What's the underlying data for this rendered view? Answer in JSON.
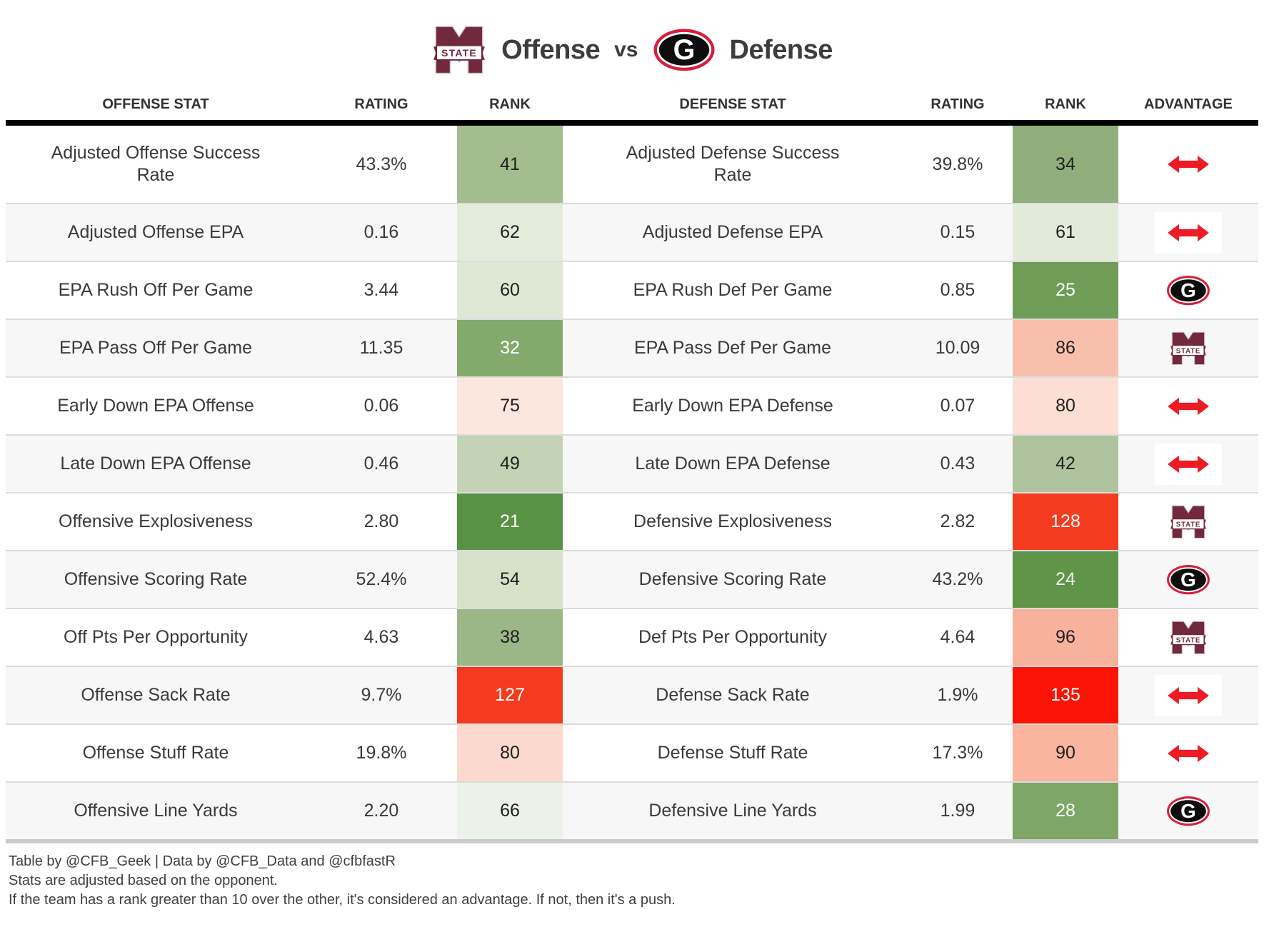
{
  "title": {
    "offense_label": "Offense",
    "vs_label": "vs",
    "defense_label": "Defense",
    "offense_logo": "mississippi-state",
    "defense_logo": "georgia"
  },
  "colors": {
    "msu_maroon": "#72283d",
    "georgia_red": "#d81e3a",
    "arrow_red": "#ed1c24",
    "header_rule": "#000000",
    "row_alt": "#f7f7f7",
    "bottom_rule": "#cbcbcb"
  },
  "chart_data": {
    "type": "table",
    "title": "Offense vs Defense",
    "columns": [
      "OFFENSE STAT",
      "RATING",
      "RANK",
      "DEFENSE STAT",
      "RATING",
      "RANK",
      "ADVANTAGE"
    ],
    "rows": [
      {
        "off_stat": "Adjusted Offense Success Rate",
        "off_rating": "43.3%",
        "off_rank": "41",
        "off_rank_bg": "#a3bd8f",
        "off_rank_fg": "#1f1f1f",
        "def_stat": "Adjusted Defense Success Rate",
        "def_rating": "39.8%",
        "def_rank": "34",
        "def_rank_bg": "#90ae7c",
        "def_rank_fg": "#1f1f1f",
        "advantage": "push"
      },
      {
        "off_stat": "Adjusted Offense EPA",
        "off_rating": "0.16",
        "off_rank": "62",
        "off_rank_bg": "#e3ebdb",
        "off_rank_fg": "#1f1f1f",
        "def_stat": "Adjusted Defense EPA",
        "def_rating": "0.15",
        "def_rank": "61",
        "def_rank_bg": "#e2eada",
        "def_rank_fg": "#1f1f1f",
        "advantage": "push"
      },
      {
        "off_stat": "EPA Rush Off Per Game",
        "off_rating": "3.44",
        "off_rank": "60",
        "off_rank_bg": "#dee8d5",
        "off_rank_fg": "#1f1f1f",
        "def_stat": "EPA Rush Def Per Game",
        "def_rating": "0.85",
        "def_rank": "25",
        "def_rank_bg": "#6f9d58",
        "def_rank_fg": "#ffffff",
        "advantage": "georgia"
      },
      {
        "off_stat": "EPA Pass Off Per Game",
        "off_rating": "11.35",
        "off_rank": "32",
        "off_rank_bg": "#84a96c",
        "off_rank_fg": "#ffffff",
        "def_stat": "EPA Pass Def Per Game",
        "def_rating": "10.09",
        "def_rank": "86",
        "def_rank_bg": "#f9bfad",
        "def_rank_fg": "#1f1f1f",
        "advantage": "mississippi-state"
      },
      {
        "off_stat": "Early Down EPA Offense",
        "off_rating": "0.06",
        "off_rank": "75",
        "off_rank_bg": "#fce7de",
        "off_rank_fg": "#1f1f1f",
        "def_stat": "Early Down EPA Defense",
        "def_rating": "0.07",
        "def_rank": "80",
        "def_rank_bg": "#fcded4",
        "def_rank_fg": "#1f1f1f",
        "advantage": "push"
      },
      {
        "off_stat": "Late Down EPA Offense",
        "off_rating": "0.46",
        "off_rank": "49",
        "off_rank_bg": "#c4d2b5",
        "off_rank_fg": "#1f1f1f",
        "def_stat": "Late Down EPA Defense",
        "def_rating": "0.43",
        "def_rank": "42",
        "def_rank_bg": "#afc49e",
        "def_rank_fg": "#1f1f1f",
        "advantage": "push"
      },
      {
        "off_stat": "Offensive Explosiveness",
        "off_rating": "2.80",
        "off_rank": "21",
        "off_rank_bg": "#5a9245",
        "off_rank_fg": "#ffffff",
        "def_stat": "Defensive Explosiveness",
        "def_rating": "2.82",
        "def_rank": "128",
        "def_rank_bg": "#f53c20",
        "def_rank_fg": "#ffffff",
        "advantage": "mississippi-state"
      },
      {
        "off_stat": "Offensive Scoring Rate",
        "off_rating": "52.4%",
        "off_rank": "54",
        "off_rank_bg": "#d6e1ca",
        "off_rank_fg": "#1f1f1f",
        "def_stat": "Defensive Scoring Rate",
        "def_rating": "43.2%",
        "def_rank": "24",
        "def_rank_bg": "#5f9449",
        "def_rank_fg": "#f5f5e9",
        "advantage": "georgia"
      },
      {
        "off_stat": "Off Pts Per Opportunity",
        "off_rating": "4.63",
        "off_rank": "38",
        "off_rank_bg": "#9cb787",
        "off_rank_fg": "#1f1f1f",
        "def_stat": "Def Pts Per Opportunity",
        "def_rating": "4.64",
        "def_rank": "96",
        "def_rank_bg": "#f8b19d",
        "def_rank_fg": "#1f1f1f",
        "advantage": "mississippi-state"
      },
      {
        "off_stat": "Offense Sack Rate",
        "off_rating": "9.7%",
        "off_rank": "127",
        "off_rank_bg": "#f53a1d",
        "off_rank_fg": "#ffffff",
        "def_stat": "Defense Sack Rate",
        "def_rating": "1.9%",
        "def_rank": "135",
        "def_rank_bg": "#fb1405",
        "def_rank_fg": "#ffffff",
        "advantage": "push"
      },
      {
        "off_stat": "Offense Stuff Rate",
        "off_rating": "19.8%",
        "off_rank": "80",
        "off_rank_bg": "#fbd9cd",
        "off_rank_fg": "#1f1f1f",
        "def_stat": "Defense Stuff Rate",
        "def_rating": "17.3%",
        "def_rank": "90",
        "def_rank_bg": "#f9b59f",
        "def_rank_fg": "#1f1f1f",
        "advantage": "push"
      },
      {
        "off_stat": "Offensive Line Yards",
        "off_rating": "2.20",
        "off_rank": "66",
        "off_rank_bg": "#edf2e8",
        "off_rank_fg": "#1f1f1f",
        "def_stat": "Defensive Line Yards",
        "def_rating": "1.99",
        "def_rank": "28",
        "def_rank_bg": "#7da667",
        "def_rank_fg": "#ffffff",
        "advantage": "georgia"
      }
    ]
  },
  "footer": {
    "line1": "Table by @CFB_Geek | Data by @CFB_Data and @cfbfastR",
    "line2": "Stats are adjusted based on the opponent.",
    "line3": "If the team has a rank greater than 10 over the other, it's considered an advantage. If not, then it's a push."
  }
}
